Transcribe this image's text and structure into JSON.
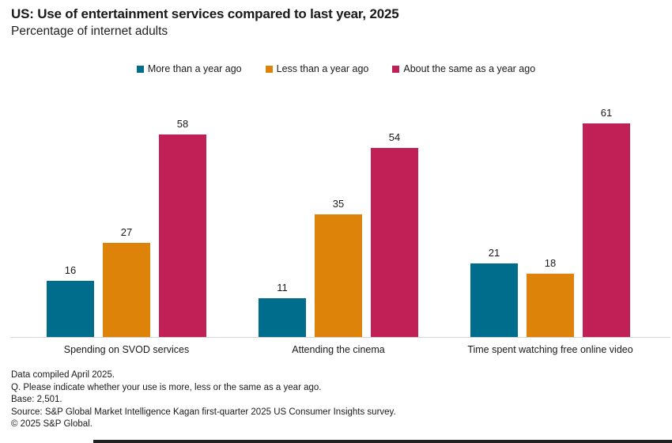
{
  "header": {
    "title": "US: Use of entertainment services compared to last year, 2025",
    "subtitle": "Percentage of internet adults"
  },
  "colors": {
    "more_than_year": "#006D8C",
    "less_than_year": "#DE830A",
    "about_same": "#C02056",
    "axis_line": "#d4d4d4",
    "bottom_rule": "#212121"
  },
  "chart_data": {
    "type": "bar",
    "title": "US: Use of entertainment services compared to last year, 2025",
    "subtitle": "Percentage of internet adults",
    "categories": [
      "Spending on SVOD services",
      "Attending the cinema",
      "Time spent watching free online video"
    ],
    "series": [
      {
        "name": "More than a year ago",
        "color": "#006D8C",
        "values": [
          16,
          11,
          21
        ]
      },
      {
        "name": "Less than a year ago",
        "color": "#DE830A",
        "values": [
          27,
          35,
          18
        ]
      },
      {
        "name": "About the same as a year ago",
        "color": "#C02056",
        "values": [
          58,
          54,
          61
        ]
      }
    ],
    "ylim": [
      0,
      67
    ],
    "grid": false,
    "y_axis_visible": false,
    "data_labels": true,
    "legend_position": "top-center"
  },
  "footer": {
    "lines": [
      "Data compiled April 2025.",
      "Q. Please indicate whether your use is more, less or the same as a year ago.",
      "Base: 2,501.",
      "Source: S&P Global Market Intelligence Kagan first-quarter 2025 US Consumer Insights survey.",
      "© 2025 S&P Global."
    ]
  }
}
